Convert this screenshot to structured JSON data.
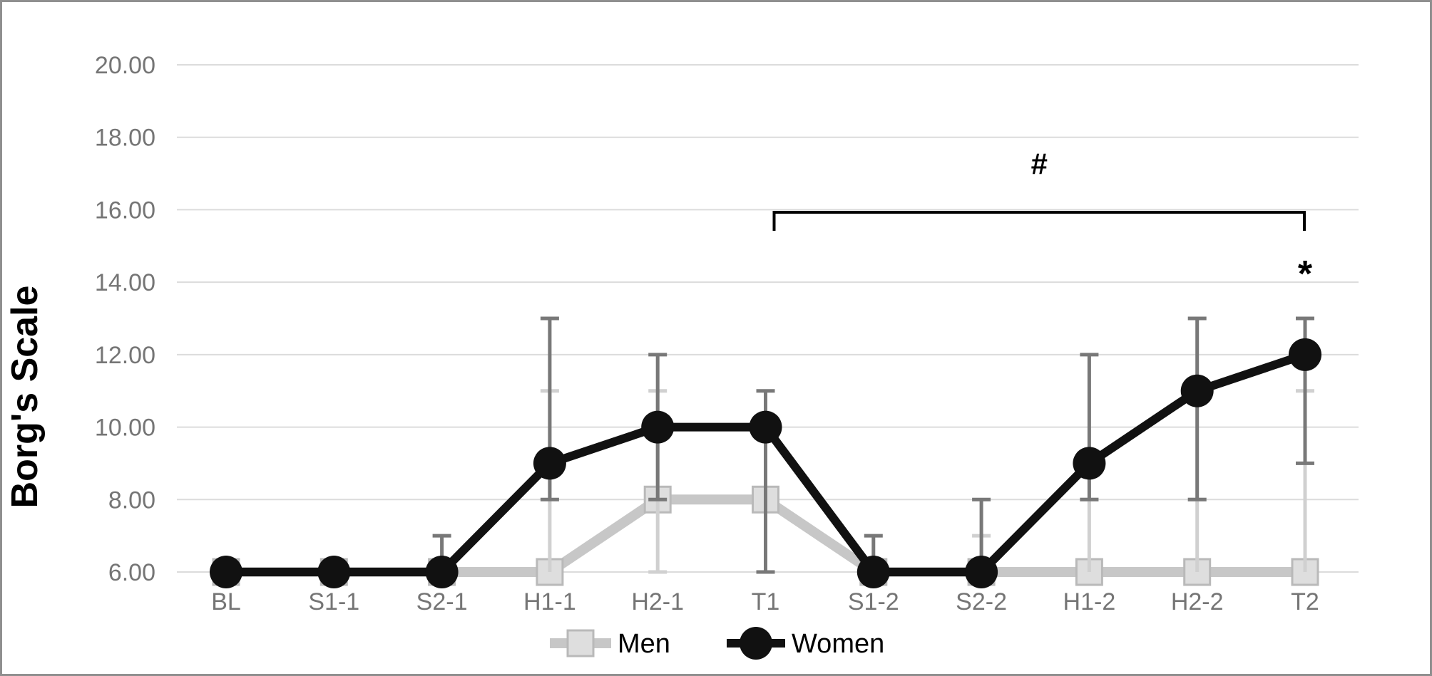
{
  "figure": {
    "background": "#ffffff",
    "border_color": "#8f8f8f",
    "grid_color": "#dcdcdc",
    "axis_text_color": "#757575",
    "ink_color": "#000000"
  },
  "chart_data": {
    "type": "line",
    "title": "",
    "xlabel": "",
    "ylabel": "Borg's Scale",
    "ylim": [
      6,
      20
    ],
    "grid": true,
    "legend_position": "bottom-center",
    "y_ticks": [
      6,
      8,
      10,
      12,
      14,
      16,
      18,
      20
    ],
    "y_tick_labels": [
      "6.00",
      "8.00",
      "10.00",
      "12.00",
      "14.00",
      "16.00",
      "18.00",
      "20.00"
    ],
    "categories": [
      "BL",
      "S1-1",
      "S2-1",
      "H1-1",
      "H2-1",
      "T1",
      "S1-2",
      "S2-2",
      "H1-2",
      "H2-2",
      "T2"
    ],
    "series": [
      {
        "name": "Men",
        "marker": "square",
        "line_color": "#c7c7c7",
        "marker_fill": "#dedede",
        "marker_stroke": "#b9b9b9",
        "error_color": "#d0d0d0",
        "values": [
          6,
          6,
          6,
          6,
          8,
          8,
          6,
          6,
          6,
          6,
          6
        ],
        "error_low": [
          null,
          null,
          null,
          6,
          6,
          null,
          null,
          6,
          6,
          6,
          6
        ],
        "error_high": [
          null,
          null,
          null,
          11,
          11,
          null,
          null,
          7,
          8,
          8,
          11
        ]
      },
      {
        "name": "Women",
        "marker": "circle",
        "line_color": "#111111",
        "marker_fill": "#111111",
        "marker_stroke": "#111111",
        "error_color": "#787878",
        "values": [
          6,
          6,
          6,
          9,
          10,
          10,
          6,
          6,
          9,
          11,
          12
        ],
        "error_low": [
          null,
          null,
          6,
          8,
          8,
          6,
          6,
          6,
          8,
          8,
          9
        ],
        "error_high": [
          null,
          null,
          7,
          13,
          12,
          11,
          7,
          8,
          12,
          13,
          13
        ]
      }
    ],
    "annotations": [
      {
        "type": "bracket",
        "label_text": "#",
        "from_category": "T1",
        "to_category": "T2",
        "y_value": 15.93,
        "label_y_value": 17.3
      },
      {
        "type": "text",
        "text": "*",
        "at_category": "T2",
        "y_value": 14.4
      }
    ]
  }
}
